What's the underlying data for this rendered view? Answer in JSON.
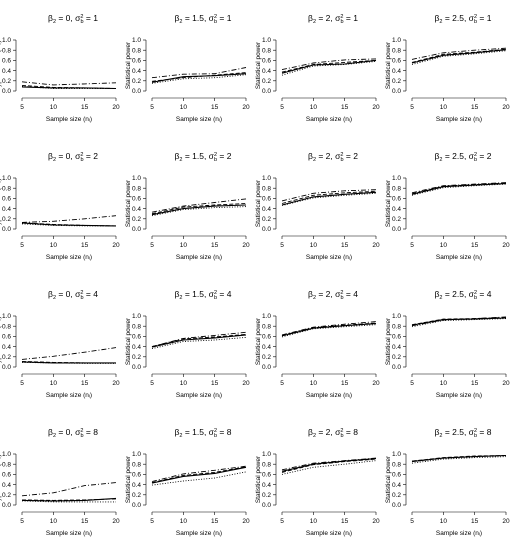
{
  "figure": {
    "x_ticks": [
      "5",
      "10",
      "15",
      "20"
    ],
    "y_ticks": [
      "0.0",
      "0.2",
      "0.4",
      "0.6",
      "0.8",
      "1.0"
    ]
  },
  "chart_data": [
    {
      "type": "line",
      "title": "β2 = 0, σ²b = 1",
      "title_parts": {
        "beta": "0",
        "sigma": "1"
      },
      "xlabel": "Sample size (nᵢ)",
      "ylabel": "Type I errors (H₀)",
      "x": [
        5,
        10,
        15,
        20
      ],
      "xlim": [
        5,
        20
      ],
      "ylim": [
        0,
        1
      ],
      "series": [
        {
          "style": "solid",
          "values": [
            0.08,
            0.06,
            0.06,
            0.05
          ]
        },
        {
          "style": "dashed",
          "values": [
            0.11,
            0.07,
            0.06,
            0.05
          ]
        },
        {
          "style": "dotted",
          "values": [
            0.09,
            0.05,
            0.05,
            0.05
          ]
        },
        {
          "style": "dashdot",
          "values": [
            0.18,
            0.12,
            0.14,
            0.16
          ]
        }
      ]
    },
    {
      "type": "line",
      "title": "β2 = 1.5, σ²b = 1",
      "title_parts": {
        "beta": "1.5",
        "sigma": "1"
      },
      "xlabel": "Sample size (nᵢ)",
      "ylabel": "Statistical power",
      "x": [
        5,
        10,
        15,
        20
      ],
      "xlim": [
        5,
        20
      ],
      "ylim": [
        0,
        1
      ],
      "series": [
        {
          "style": "solid",
          "values": [
            0.17,
            0.28,
            0.3,
            0.34
          ]
        },
        {
          "style": "dashed",
          "values": [
            0.19,
            0.26,
            0.31,
            0.36
          ]
        },
        {
          "style": "dotted",
          "values": [
            0.15,
            0.24,
            0.26,
            0.32
          ]
        },
        {
          "style": "dashdot",
          "values": [
            0.26,
            0.33,
            0.34,
            0.46
          ]
        }
      ]
    },
    {
      "type": "line",
      "title": "β2 = 2, σ²b = 1",
      "title_parts": {
        "beta": "2",
        "sigma": "1"
      },
      "xlabel": "Sample size (nᵢ)",
      "ylabel": "Statistical power",
      "x": [
        5,
        10,
        15,
        20
      ],
      "xlim": [
        5,
        20
      ],
      "ylim": [
        0,
        1
      ],
      "series": [
        {
          "style": "solid",
          "values": [
            0.35,
            0.51,
            0.53,
            0.6
          ]
        },
        {
          "style": "dashed",
          "values": [
            0.37,
            0.52,
            0.56,
            0.6
          ]
        },
        {
          "style": "dotted",
          "values": [
            0.31,
            0.49,
            0.52,
            0.58
          ]
        },
        {
          "style": "dashdot",
          "values": [
            0.42,
            0.55,
            0.61,
            0.63
          ]
        }
      ]
    },
    {
      "type": "line",
      "title": "β2 = 2.5, σ²b = 1",
      "title_parts": {
        "beta": "2.5",
        "sigma": "1"
      },
      "xlabel": "Sample size (nᵢ)",
      "ylabel": "Statistical power",
      "x": [
        5,
        10,
        15,
        20
      ],
      "xlim": [
        5,
        20
      ],
      "ylim": [
        0,
        1
      ],
      "series": [
        {
          "style": "solid",
          "values": [
            0.55,
            0.7,
            0.75,
            0.81
          ]
        },
        {
          "style": "dashed",
          "values": [
            0.56,
            0.72,
            0.76,
            0.82
          ]
        },
        {
          "style": "dotted",
          "values": [
            0.52,
            0.68,
            0.73,
            0.79
          ]
        },
        {
          "style": "dashdot",
          "values": [
            0.62,
            0.75,
            0.8,
            0.84
          ]
        }
      ]
    },
    {
      "type": "line",
      "title": "β2 = 0, σ²b = 2",
      "title_parts": {
        "beta": "0",
        "sigma": "2"
      },
      "xlabel": "Sample size (nᵢ)",
      "ylabel": "Type I errors (H₀)",
      "x": [
        5,
        10,
        15,
        20
      ],
      "xlim": [
        5,
        20
      ],
      "ylim": [
        0,
        1
      ],
      "series": [
        {
          "style": "solid",
          "values": [
            0.12,
            0.08,
            0.07,
            0.06
          ]
        },
        {
          "style": "dashed",
          "values": [
            0.12,
            0.09,
            0.07,
            0.06
          ]
        },
        {
          "style": "dotted",
          "values": [
            0.1,
            0.07,
            0.06,
            0.06
          ]
        },
        {
          "style": "dashdot",
          "values": [
            0.13,
            0.15,
            0.2,
            0.26
          ]
        }
      ]
    },
    {
      "type": "line",
      "title": "β2 = 1.5, σ²b = 2",
      "title_parts": {
        "beta": "1.5",
        "sigma": "2"
      },
      "xlabel": "Sample size (nᵢ)",
      "ylabel": "Statistical power",
      "x": [
        5,
        10,
        15,
        20
      ],
      "xlim": [
        5,
        20
      ],
      "ylim": [
        0,
        1
      ],
      "series": [
        {
          "style": "solid",
          "values": [
            0.28,
            0.4,
            0.45,
            0.47
          ]
        },
        {
          "style": "dashed",
          "values": [
            0.3,
            0.43,
            0.47,
            0.5
          ]
        },
        {
          "style": "dotted",
          "values": [
            0.26,
            0.38,
            0.42,
            0.44
          ]
        },
        {
          "style": "dashdot",
          "values": [
            0.33,
            0.45,
            0.52,
            0.59
          ]
        }
      ]
    },
    {
      "type": "line",
      "title": "β2 = 2, σ²b = 2",
      "title_parts": {
        "beta": "2",
        "sigma": "2"
      },
      "xlabel": "Sample size (nᵢ)",
      "ylabel": "Statistical power",
      "x": [
        5,
        10,
        15,
        20
      ],
      "xlim": [
        5,
        20
      ],
      "ylim": [
        0,
        1
      ],
      "series": [
        {
          "style": "solid",
          "values": [
            0.47,
            0.63,
            0.68,
            0.72
          ]
        },
        {
          "style": "dashed",
          "values": [
            0.5,
            0.66,
            0.71,
            0.74
          ]
        },
        {
          "style": "dotted",
          "values": [
            0.46,
            0.61,
            0.66,
            0.7
          ]
        },
        {
          "style": "dashdot",
          "values": [
            0.55,
            0.7,
            0.75,
            0.77
          ]
        }
      ]
    },
    {
      "type": "line",
      "title": "β2 = 2.5, σ²b = 2",
      "title_parts": {
        "beta": "2.5",
        "sigma": "2"
      },
      "xlabel": "Sample size (nᵢ)",
      "ylabel": "Statistical power",
      "x": [
        5,
        10,
        15,
        20
      ],
      "xlim": [
        5,
        20
      ],
      "ylim": [
        0,
        1
      ],
      "series": [
        {
          "style": "solid",
          "values": [
            0.68,
            0.83,
            0.86,
            0.89
          ]
        },
        {
          "style": "dashed",
          "values": [
            0.69,
            0.84,
            0.87,
            0.9
          ]
        },
        {
          "style": "dotted",
          "values": [
            0.66,
            0.81,
            0.85,
            0.88
          ]
        },
        {
          "style": "dashdot",
          "values": [
            0.71,
            0.85,
            0.88,
            0.91
          ]
        }
      ]
    },
    {
      "type": "line",
      "title": "β2 = 0, σ²b = 4",
      "title_parts": {
        "beta": "0",
        "sigma": "4"
      },
      "xlabel": "Sample size (nᵢ)",
      "ylabel": "Type I errors (H₀)",
      "x": [
        5,
        10,
        15,
        20
      ],
      "xlim": [
        5,
        20
      ],
      "ylim": [
        0,
        1
      ],
      "series": [
        {
          "style": "solid",
          "values": [
            0.1,
            0.08,
            0.08,
            0.08
          ]
        },
        {
          "style": "dashed",
          "values": [
            0.11,
            0.09,
            0.08,
            0.08
          ]
        },
        {
          "style": "dotted",
          "values": [
            0.09,
            0.08,
            0.07,
            0.07
          ]
        },
        {
          "style": "dashdot",
          "values": [
            0.15,
            0.21,
            0.29,
            0.38
          ]
        }
      ]
    },
    {
      "type": "line",
      "title": "β2 = 1.5, σ²b = 4",
      "title_parts": {
        "beta": "1.5",
        "sigma": "4"
      },
      "xlabel": "Sample size (nᵢ)",
      "ylabel": "Statistical power",
      "x": [
        5,
        10,
        15,
        20
      ],
      "xlim": [
        5,
        20
      ],
      "ylim": [
        0,
        1
      ],
      "series": [
        {
          "style": "solid",
          "values": [
            0.39,
            0.53,
            0.57,
            0.63
          ]
        },
        {
          "style": "dashed",
          "values": [
            0.4,
            0.55,
            0.59,
            0.64
          ]
        },
        {
          "style": "dotted",
          "values": [
            0.36,
            0.5,
            0.53,
            0.58
          ]
        },
        {
          "style": "dashdot",
          "values": [
            0.4,
            0.56,
            0.62,
            0.68
          ]
        }
      ]
    },
    {
      "type": "line",
      "title": "β2 = 2, σ²b = 4",
      "title_parts": {
        "beta": "2",
        "sigma": "4"
      },
      "xlabel": "Sample size (nᵢ)",
      "ylabel": "Statistical power",
      "x": [
        5,
        10,
        15,
        20
      ],
      "xlim": [
        5,
        20
      ],
      "ylim": [
        0,
        1
      ],
      "series": [
        {
          "style": "solid",
          "values": [
            0.61,
            0.76,
            0.81,
            0.85
          ]
        },
        {
          "style": "dashed",
          "values": [
            0.62,
            0.77,
            0.82,
            0.86
          ]
        },
        {
          "style": "dotted",
          "values": [
            0.59,
            0.75,
            0.79,
            0.83
          ]
        },
        {
          "style": "dashdot",
          "values": [
            0.63,
            0.78,
            0.84,
            0.89
          ]
        }
      ]
    },
    {
      "type": "line",
      "title": "β2 = 2.5, σ²b = 4",
      "title_parts": {
        "beta": "2.5",
        "sigma": "4"
      },
      "xlabel": "Sample size (nᵢ)",
      "ylabel": "Statistical power",
      "x": [
        5,
        10,
        15,
        20
      ],
      "xlim": [
        5,
        20
      ],
      "ylim": [
        0,
        1
      ],
      "series": [
        {
          "style": "solid",
          "values": [
            0.82,
            0.93,
            0.94,
            0.96
          ]
        },
        {
          "style": "dashed",
          "values": [
            0.83,
            0.94,
            0.95,
            0.97
          ]
        },
        {
          "style": "dotted",
          "values": [
            0.79,
            0.91,
            0.93,
            0.95
          ]
        },
        {
          "style": "dashdot",
          "values": [
            0.81,
            0.92,
            0.95,
            0.98
          ]
        }
      ]
    },
    {
      "type": "line",
      "title": "β2 = 0, σ²b = 8",
      "title_parts": {
        "beta": "0",
        "sigma": "8"
      },
      "xlabel": "Sample size (nᵢ)",
      "ylabel": "Type I errors (H₀)",
      "x": [
        5,
        10,
        15,
        20
      ],
      "xlim": [
        5,
        20
      ],
      "ylim": [
        0,
        1
      ],
      "series": [
        {
          "style": "solid",
          "values": [
            0.09,
            0.08,
            0.09,
            0.13
          ]
        },
        {
          "style": "dashed",
          "values": [
            0.1,
            0.09,
            0.1,
            0.12
          ]
        },
        {
          "style": "dotted",
          "values": [
            0.08,
            0.06,
            0.06,
            0.06
          ]
        },
        {
          "style": "dashdot",
          "values": [
            0.18,
            0.24,
            0.38,
            0.44
          ]
        }
      ]
    },
    {
      "type": "line",
      "title": "β2 = 1.5, σ²b = 8",
      "title_parts": {
        "beta": "1.5",
        "sigma": "8"
      },
      "xlabel": "Sample size (nᵢ)",
      "ylabel": "Statistical power",
      "x": [
        5,
        10,
        15,
        20
      ],
      "xlim": [
        5,
        20
      ],
      "ylim": [
        0,
        1
      ],
      "series": [
        {
          "style": "solid",
          "values": [
            0.43,
            0.56,
            0.62,
            0.74
          ]
        },
        {
          "style": "dashed",
          "values": [
            0.44,
            0.58,
            0.64,
            0.75
          ]
        },
        {
          "style": "dotted",
          "values": [
            0.39,
            0.47,
            0.53,
            0.65
          ]
        },
        {
          "style": "dashdot",
          "values": [
            0.46,
            0.61,
            0.68,
            0.76
          ]
        }
      ]
    },
    {
      "type": "line",
      "title": "β2 = 2, σ²b = 8",
      "title_parts": {
        "beta": "2",
        "sigma": "8"
      },
      "xlabel": "Sample size (nᵢ)",
      "ylabel": "Statistical power",
      "x": [
        5,
        10,
        15,
        20
      ],
      "xlim": [
        5,
        20
      ],
      "ylim": [
        0,
        1
      ],
      "series": [
        {
          "style": "solid",
          "values": [
            0.66,
            0.8,
            0.86,
            0.91
          ]
        },
        {
          "style": "dashed",
          "values": [
            0.64,
            0.79,
            0.85,
            0.9
          ]
        },
        {
          "style": "dotted",
          "values": [
            0.6,
            0.74,
            0.8,
            0.87
          ]
        },
        {
          "style": "dashdot",
          "values": [
            0.69,
            0.82,
            0.87,
            0.92
          ]
        }
      ]
    },
    {
      "type": "line",
      "title": "β2 = 2.5, σ²b = 8",
      "title_parts": {
        "beta": "2.5",
        "sigma": "8"
      },
      "xlabel": "Sample size (nᵢ)",
      "ylabel": "Statistical power",
      "x": [
        5,
        10,
        15,
        20
      ],
      "xlim": [
        5,
        20
      ],
      "ylim": [
        0,
        1
      ],
      "series": [
        {
          "style": "solid",
          "values": [
            0.85,
            0.92,
            0.95,
            0.97
          ]
        },
        {
          "style": "dashed",
          "values": [
            0.86,
            0.93,
            0.96,
            0.97
          ]
        },
        {
          "style": "dotted",
          "values": [
            0.82,
            0.9,
            0.93,
            0.95
          ]
        },
        {
          "style": "dashdot",
          "values": [
            0.86,
            0.92,
            0.95,
            0.97
          ]
        }
      ]
    }
  ]
}
